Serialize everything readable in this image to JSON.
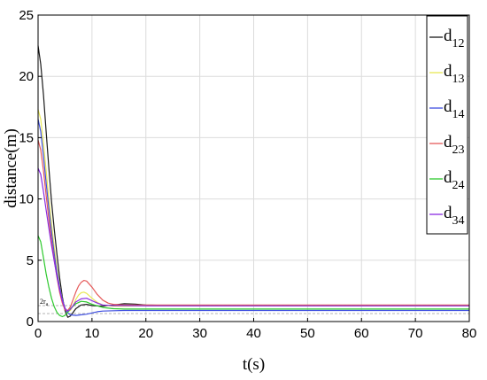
{
  "chart_data": {
    "type": "line",
    "title": "",
    "xlabel": "t(s)",
    "ylabel": "distance(m)",
    "xlim": [
      0,
      80
    ],
    "ylim": [
      0,
      25
    ],
    "xticks": [
      0,
      10,
      20,
      30,
      40,
      50,
      60,
      70,
      80
    ],
    "yticks": [
      0,
      5,
      10,
      15,
      20,
      25
    ],
    "grid": true,
    "legend_position": "top-right",
    "annotation": {
      "text": "2r",
      "subscript": "a",
      "y": 1.3
    },
    "reference_lines": [
      {
        "y": 0.65,
        "style": "dashed",
        "color": "#9a9a9a"
      },
      {
        "y": 1.3,
        "style": "dashed",
        "color": "#9a9a9a"
      }
    ],
    "series": [
      {
        "name": "d",
        "sub": "12",
        "color": "#1a1a1a",
        "points": [
          [
            0,
            22.5
          ],
          [
            0.5,
            21
          ],
          [
            1,
            18.5
          ],
          [
            1.5,
            15.5
          ],
          [
            2,
            12.5
          ],
          [
            2.5,
            9.8
          ],
          [
            3,
            7.5
          ],
          [
            3.5,
            5.5
          ],
          [
            4,
            3.6
          ],
          [
            4.5,
            2
          ],
          [
            5,
            0.9
          ],
          [
            5.5,
            0.35
          ],
          [
            6,
            0.45
          ],
          [
            6.5,
            0.75
          ],
          [
            7,
            1.05
          ],
          [
            8,
            1.35
          ],
          [
            9,
            1.4
          ],
          [
            10,
            1.3
          ],
          [
            12,
            1.25
          ],
          [
            14,
            1.35
          ],
          [
            16,
            1.45
          ],
          [
            18,
            1.42
          ],
          [
            20,
            1.35
          ],
          [
            25,
            1.3
          ],
          [
            30,
            1.28
          ],
          [
            40,
            1.28
          ],
          [
            60,
            1.28
          ],
          [
            80,
            1.28
          ]
        ]
      },
      {
        "name": "d",
        "sub": "13",
        "color": "#e8e855",
        "points": [
          [
            0,
            17.3
          ],
          [
            0.5,
            16.5
          ],
          [
            1,
            14.5
          ],
          [
            1.5,
            12.3
          ],
          [
            2,
            10
          ],
          [
            2.5,
            8
          ],
          [
            3,
            6
          ],
          [
            3.5,
            4.3
          ],
          [
            4,
            2.9
          ],
          [
            4.5,
            1.8
          ],
          [
            5,
            1.1
          ],
          [
            5.5,
            0.8
          ],
          [
            6,
            0.9
          ],
          [
            6.5,
            1.3
          ],
          [
            7,
            1.8
          ],
          [
            7.5,
            2.15
          ],
          [
            8,
            2.35
          ],
          [
            8.5,
            2.4
          ],
          [
            9,
            2.3
          ],
          [
            10,
            1.9
          ],
          [
            11,
            1.55
          ],
          [
            12,
            1.35
          ],
          [
            14,
            1.25
          ],
          [
            16,
            1.25
          ],
          [
            20,
            1.28
          ],
          [
            30,
            1.28
          ],
          [
            80,
            1.28
          ]
        ]
      },
      {
        "name": "d",
        "sub": "14",
        "color": "#3f4fe0",
        "points": [
          [
            0,
            16.5
          ],
          [
            0.5,
            15.5
          ],
          [
            1,
            13.5
          ],
          [
            1.5,
            11.3
          ],
          [
            2,
            9.2
          ],
          [
            2.5,
            7.3
          ],
          [
            3,
            5.5
          ],
          [
            3.5,
            4
          ],
          [
            4,
            2.8
          ],
          [
            4.5,
            1.8
          ],
          [
            5,
            1.1
          ],
          [
            5.5,
            0.7
          ],
          [
            6,
            0.55
          ],
          [
            7,
            0.5
          ],
          [
            8,
            0.55
          ],
          [
            9,
            0.6
          ],
          [
            10,
            0.7
          ],
          [
            11,
            0.8
          ],
          [
            12,
            0.85
          ],
          [
            14,
            0.88
          ],
          [
            16,
            0.9
          ],
          [
            20,
            0.9
          ],
          [
            30,
            0.9
          ],
          [
            80,
            0.9
          ]
        ]
      },
      {
        "name": "d",
        "sub": "23",
        "color": "#e55a5a",
        "points": [
          [
            0,
            14.8
          ],
          [
            0.5,
            14
          ],
          [
            1,
            12.3
          ],
          [
            1.5,
            10.3
          ],
          [
            2,
            8.3
          ],
          [
            2.5,
            6.6
          ],
          [
            3,
            5
          ],
          [
            3.5,
            3.6
          ],
          [
            4,
            2.4
          ],
          [
            4.5,
            1.5
          ],
          [
            5,
            0.95
          ],
          [
            5.5,
            0.9
          ],
          [
            6,
            1.2
          ],
          [
            6.5,
            1.8
          ],
          [
            7,
            2.4
          ],
          [
            7.5,
            2.9
          ],
          [
            8,
            3.2
          ],
          [
            8.5,
            3.35
          ],
          [
            9,
            3.3
          ],
          [
            10,
            2.8
          ],
          [
            11,
            2.2
          ],
          [
            12,
            1.75
          ],
          [
            13,
            1.5
          ],
          [
            14,
            1.4
          ],
          [
            16,
            1.35
          ],
          [
            20,
            1.35
          ],
          [
            30,
            1.35
          ],
          [
            80,
            1.35
          ]
        ]
      },
      {
        "name": "d",
        "sub": "24",
        "color": "#2ec92e",
        "points": [
          [
            0,
            7
          ],
          [
            0.5,
            6.5
          ],
          [
            1,
            5.2
          ],
          [
            1.5,
            3.9
          ],
          [
            2,
            2.8
          ],
          [
            2.5,
            1.9
          ],
          [
            3,
            1.2
          ],
          [
            3.5,
            0.75
          ],
          [
            4,
            0.5
          ],
          [
            4.5,
            0.4
          ],
          [
            5,
            0.5
          ],
          [
            5.5,
            0.75
          ],
          [
            6,
            1.05
          ],
          [
            7,
            1.45
          ],
          [
            8,
            1.65
          ],
          [
            9,
            1.6
          ],
          [
            10,
            1.4
          ],
          [
            12,
            1.15
          ],
          [
            14,
            1.05
          ],
          [
            16,
            1.02
          ],
          [
            20,
            1.02
          ],
          [
            30,
            1.02
          ],
          [
            80,
            1.02
          ]
        ]
      },
      {
        "name": "d",
        "sub": "34",
        "color": "#8a2be2",
        "points": [
          [
            0,
            12.5
          ],
          [
            0.5,
            12
          ],
          [
            1,
            10.6
          ],
          [
            1.5,
            9.1
          ],
          [
            2,
            7.6
          ],
          [
            2.5,
            6.2
          ],
          [
            3,
            4.9
          ],
          [
            3.5,
            3.7
          ],
          [
            4,
            2.6
          ],
          [
            4.5,
            1.7
          ],
          [
            5,
            1.05
          ],
          [
            5.5,
            0.85
          ],
          [
            6,
            1
          ],
          [
            6.5,
            1.3
          ],
          [
            7,
            1.6
          ],
          [
            8,
            1.85
          ],
          [
            9,
            1.9
          ],
          [
            10,
            1.7
          ],
          [
            11,
            1.5
          ],
          [
            12,
            1.35
          ],
          [
            14,
            1.3
          ],
          [
            16,
            1.3
          ],
          [
            20,
            1.28
          ],
          [
            30,
            1.28
          ],
          [
            80,
            1.28
          ]
        ]
      }
    ]
  }
}
